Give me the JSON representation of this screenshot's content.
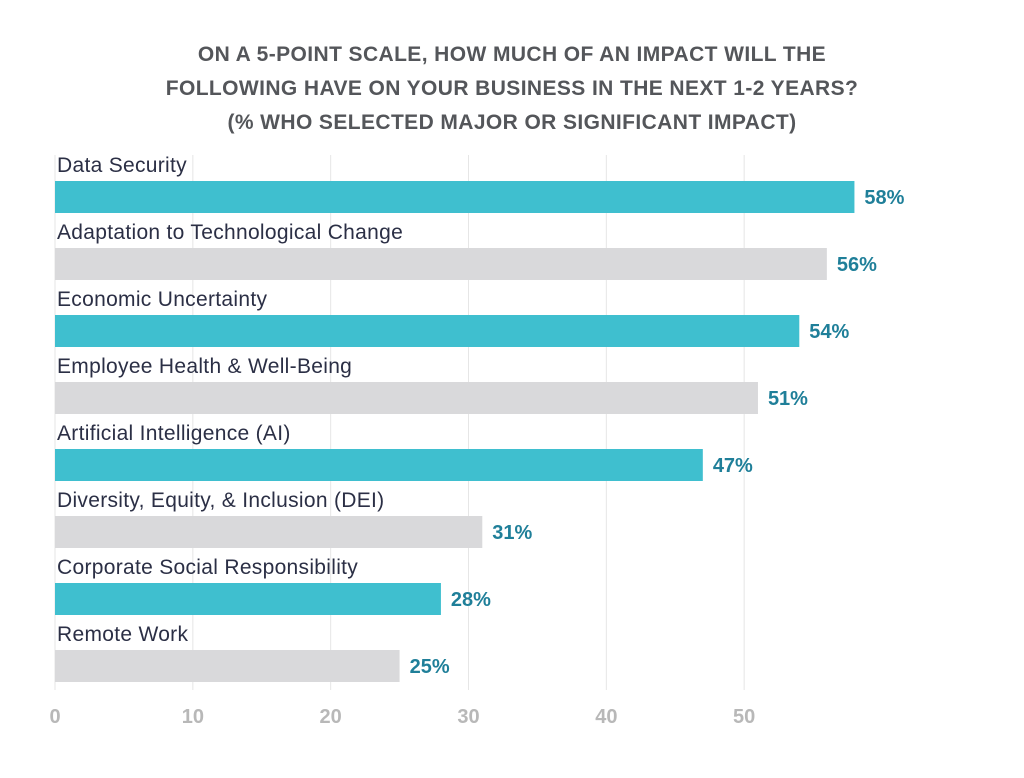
{
  "chart_data": {
    "type": "bar",
    "orientation": "horizontal",
    "title_lines": [
      "ON A 5-POINT SCALE, HOW MUCH OF AN IMPACT WILL THE",
      "FOLLOWING HAVE ON YOUR BUSINESS IN THE NEXT 1-2 YEARS?",
      "(% WHO SELECTED MAJOR OR SIGNIFICANT IMPACT)"
    ],
    "categories": [
      "Data Security",
      "Adaptation to Technological Change",
      "Economic Uncertainty",
      "Employee Health & Well-Being",
      "Artificial Intelligence (AI)",
      "Diversity, Equity, & Inclusion (DEI)",
      "Corporate Social Responsibility",
      "Remote Work"
    ],
    "values": [
      58,
      56,
      54,
      51,
      47,
      31,
      28,
      25
    ],
    "value_labels": [
      "58%",
      "56%",
      "54%",
      "51%",
      "47%",
      "31%",
      "28%",
      "25%"
    ],
    "x_ticks": [
      "0",
      "10",
      "20",
      "30",
      "40",
      "50"
    ],
    "xlim": [
      0,
      60
    ],
    "grid": true,
    "colors": {
      "bar_primary": "#3fbfcf",
      "bar_secondary": "#d9d9db",
      "value_label": "#1f7f99",
      "category_label": "#2b2f45",
      "tick_label": "#b8b8b8",
      "gridline": "#e6e6e6",
      "title": "#54565a"
    },
    "bar_color_pattern": [
      "bar_primary",
      "bar_secondary"
    ]
  }
}
